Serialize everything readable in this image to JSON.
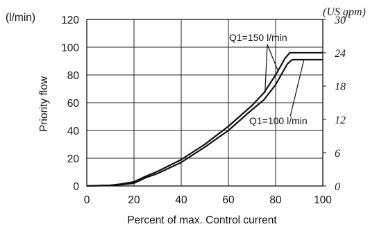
{
  "chart_data": {
    "type": "line",
    "left_unit": "(l/min)",
    "right_unit": "(US gpm)",
    "xlabel": "Percent of max. Control current",
    "ylabel": "Priority flow",
    "xlim": [
      0,
      100
    ],
    "ylim": [
      0,
      120
    ],
    "y2lim": [
      0,
      30
    ],
    "x_ticks": [
      0,
      20,
      40,
      60,
      80,
      100
    ],
    "y_ticks": [
      0,
      20,
      40,
      60,
      80,
      100,
      120
    ],
    "y2_ticks": [
      0,
      6,
      12,
      18,
      24,
      30
    ],
    "grid": true,
    "series": [
      {
        "name": "Q1=150 l/min",
        "x": [
          0,
          10,
          15,
          20,
          25,
          30,
          40,
          50,
          60,
          70,
          75,
          80,
          84,
          86,
          100
        ],
        "y": [
          0,
          0.5,
          1.5,
          3,
          7,
          10.5,
          19,
          30,
          43,
          58,
          67,
          80,
          92,
          96,
          96
        ]
      },
      {
        "name": "Q1=100 l/min",
        "x": [
          0,
          10,
          15,
          20,
          25,
          30,
          40,
          50,
          60,
          70,
          75,
          80,
          85,
          87,
          100
        ],
        "y": [
          0,
          0.5,
          1,
          2,
          6,
          9,
          17,
          28,
          40,
          55,
          62,
          73,
          88,
          91,
          91
        ]
      }
    ],
    "annotations": [
      {
        "text": "Q1=150 l/min",
        "series": 0
      },
      {
        "text": "Q1=100 l/min",
        "series": 1
      }
    ]
  }
}
